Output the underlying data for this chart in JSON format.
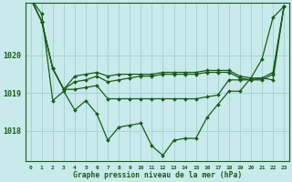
{
  "title": "Graphe pression niveau de la mer (hPa)",
  "background_color": "#c8eaea",
  "grid_color": "#a8d4d4",
  "line_color": "#1a5c1a",
  "x_ticks": [
    0,
    1,
    2,
    3,
    4,
    5,
    6,
    7,
    8,
    9,
    10,
    11,
    12,
    13,
    14,
    15,
    16,
    17,
    18,
    19,
    20,
    21,
    22,
    23
  ],
  "y_ticks": [
    1018,
    1019,
    1020
  ],
  "ylim": [
    1017.2,
    1021.4
  ],
  "xlim": [
    -0.5,
    23.5
  ],
  "series": [
    [
      1021.5,
      1020.9,
      1019.65,
      1019.1,
      1019.1,
      1019.15,
      1019.2,
      1018.85,
      1018.85,
      1018.85,
      1018.85,
      1018.85,
      1018.85,
      1018.85,
      1018.85,
      1018.85,
      1018.9,
      1018.95,
      1019.35,
      1019.35,
      1019.35,
      1019.4,
      1019.35,
      1021.3
    ],
    [
      1021.5,
      1020.9,
      1019.65,
      1019.1,
      1019.3,
      1019.35,
      1019.45,
      1019.3,
      1019.35,
      1019.4,
      1019.45,
      1019.45,
      1019.5,
      1019.5,
      1019.5,
      1019.5,
      1019.55,
      1019.55,
      1019.55,
      1019.4,
      1019.35,
      1019.35,
      1019.5,
      1021.3
    ],
    [
      1021.5,
      1020.9,
      1019.65,
      1019.1,
      1019.45,
      1019.5,
      1019.55,
      1019.45,
      1019.5,
      1019.5,
      1019.5,
      1019.5,
      1019.55,
      1019.55,
      1019.55,
      1019.55,
      1019.6,
      1019.6,
      1019.6,
      1019.45,
      1019.4,
      1019.4,
      1019.55,
      1021.3
    ],
    [
      1021.5,
      1021.1,
      1018.8,
      1019.05,
      1018.55,
      1018.8,
      1018.45,
      1017.75,
      1018.1,
      1018.15,
      1018.2,
      1017.6,
      1017.35,
      1017.75,
      1017.8,
      1017.8,
      1018.35,
      1018.7,
      1019.05,
      1019.05,
      1019.4,
      1019.9,
      1021.0,
      1021.3
    ]
  ]
}
